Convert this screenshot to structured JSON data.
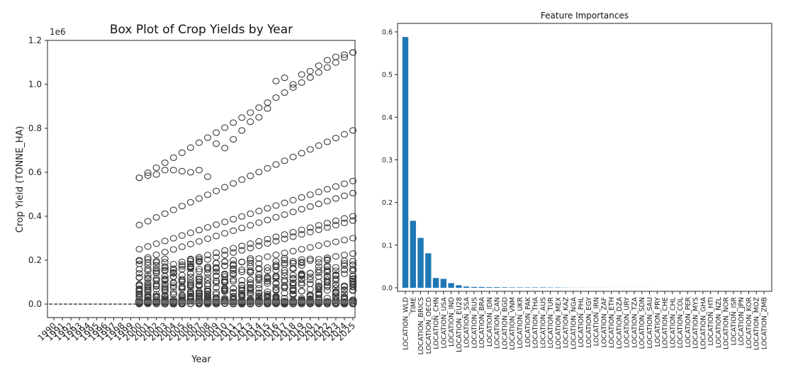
{
  "chart_data": [
    {
      "type": "box",
      "title": "Box Plot of Crop Yields by Year",
      "xlabel": "Year",
      "ylabel": "Crop Yield (TONNE_HA)",
      "offset_label": "1e6",
      "ylim": [
        -0.05,
        1.2
      ],
      "yticks": [
        "0.0",
        "0.2",
        "0.4",
        "0.6",
        "0.8",
        "1.0",
        "1.2"
      ],
      "years": [
        1990,
        1991,
        1992,
        1993,
        1994,
        1995,
        1996,
        1997,
        1998,
        1999,
        2000,
        2001,
        2002,
        2003,
        2004,
        2005,
        2006,
        2007,
        2008,
        2009,
        2010,
        2011,
        2012,
        2013,
        2014,
        2015,
        2016,
        2017,
        2018,
        2019,
        2020,
        2021,
        2022,
        2023,
        2024,
        2025
      ],
      "outlier_bands": [
        {
          "start_year": 2000,
          "end_year": 2025,
          "start": 0.575,
          "end": 1.145
        },
        {
          "start_year": 2000,
          "end_year": 2025,
          "start": 0.36,
          "end": 0.79
        },
        {
          "start_year": 2000,
          "end_year": 2025,
          "start": 0.25,
          "end": 0.56
        },
        {
          "start_year": 2000,
          "end_year": 2025,
          "start": 0.2,
          "end": 0.505
        },
        {
          "start_year": 2000,
          "end_year": 2025,
          "start": 0.14,
          "end": 0.4
        },
        {
          "start_year": 2000,
          "end_year": 2025,
          "start": 0.12,
          "end": 0.38
        },
        {
          "start_year": 2000,
          "end_year": 2025,
          "start": 0.09,
          "end": 0.3
        },
        {
          "start_year": 2000,
          "end_year": 2025,
          "start": 0.07,
          "end": 0.23
        },
        {
          "start_year": 2000,
          "end_year": 2025,
          "start": 0.06,
          "end": 0.16
        }
      ],
      "upper_cluster": [
        {
          "year": 2000,
          "value": 0.575
        },
        {
          "year": 2001,
          "value": 0.585
        },
        {
          "year": 2002,
          "value": 0.59
        },
        {
          "year": 2003,
          "value": 0.61
        },
        {
          "year": 2004,
          "value": 0.61
        },
        {
          "year": 2005,
          "value": 0.605
        },
        {
          "year": 2006,
          "value": 0.6
        },
        {
          "year": 2007,
          "value": 0.61
        },
        {
          "year": 2008,
          "value": 0.58
        },
        {
          "year": 2009,
          "value": 0.73
        },
        {
          "year": 2010,
          "value": 0.71
        },
        {
          "year": 2011,
          "value": 0.75
        },
        {
          "year": 2012,
          "value": 0.79
        },
        {
          "year": 2013,
          "value": 0.83
        },
        {
          "year": 2014,
          "value": 0.85
        },
        {
          "year": 2015,
          "value": 0.89
        },
        {
          "year": 2016,
          "value": 1.015
        },
        {
          "year": 2017,
          "value": 1.03
        },
        {
          "year": 2018,
          "value": 1.0
        },
        {
          "year": 2019,
          "value": 1.045
        },
        {
          "year": 2020,
          "value": 1.06
        },
        {
          "year": 2021,
          "value": 1.085
        },
        {
          "year": 2022,
          "value": 1.11
        },
        {
          "year": 2023,
          "value": 1.125
        },
        {
          "year": 2024,
          "value": 1.135
        },
        {
          "year": 2025,
          "value": 1.145
        }
      ]
    },
    {
      "type": "bar",
      "title": "Feature Importances",
      "ylim": [
        0,
        0.62
      ],
      "yticks": [
        "0.0",
        "0.1",
        "0.2",
        "0.3",
        "0.4",
        "0.5",
        "0.6"
      ],
      "categories": [
        "LOCATION_WLD",
        "TIME",
        "LOCATION_BRICS",
        "LOCATION_OECD",
        "LOCATION_CHN",
        "LOCATION_USA",
        "LOCATION_IND",
        "LOCATION_EU28",
        "LOCATION_SSA",
        "LOCATION_RUS",
        "LOCATION_BRA",
        "LOCATION_IDN",
        "LOCATION_CAN",
        "LOCATION_BGD",
        "LOCATION_VNM",
        "LOCATION_UKR",
        "LOCATION_PAK",
        "LOCATION_THA",
        "LOCATION_AUS",
        "LOCATION_TUR",
        "LOCATION_MEX",
        "LOCATION_KAZ",
        "LOCATION_NGA",
        "LOCATION_PHL",
        "LOCATION_EGY",
        "LOCATION_IRN",
        "LOCATION_ZAF",
        "LOCATION_ETH",
        "LOCATION_DZA",
        "LOCATION_URY",
        "LOCATION_TZA",
        "LOCATION_SDN",
        "LOCATION_SAU",
        "LOCATION_PRY",
        "LOCATION_CHE",
        "LOCATION_CHL",
        "LOCATION_COL",
        "LOCATION_PER",
        "LOCATION_MYS",
        "LOCATION_GHA",
        "LOCATION_HTI",
        "LOCATION_NZL",
        "LOCATION_NOR",
        "LOCATION_ISR",
        "LOCATION_JPN",
        "LOCATION_KOR",
        "LOCATION_MOZ",
        "LOCATION_ZMB"
      ],
      "values": [
        0.588,
        0.157,
        0.117,
        0.081,
        0.023,
        0.021,
        0.011,
        0.006,
        0.003,
        0.002,
        0.002,
        0.0015,
        0.0015,
        0.0012,
        0.001,
        0.001,
        0.001,
        0.001,
        0.001,
        0.0008,
        0.0008,
        0.0005,
        0.0003,
        0.0003,
        0.0002,
        0.0002,
        0.0002,
        0.0001,
        0.0001,
        0.0001,
        0.0001,
        0.0001,
        0.0001,
        0,
        0,
        0,
        0,
        0,
        0,
        0,
        0,
        0,
        0,
        0,
        0,
        0,
        0,
        0
      ],
      "bar_color": "#1f77b4"
    }
  ]
}
